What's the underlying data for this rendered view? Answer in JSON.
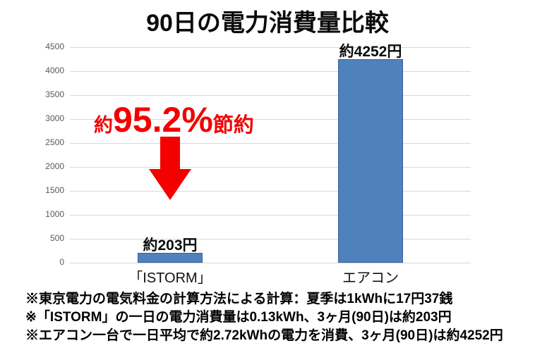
{
  "title": "90日の電力消費量比較",
  "chart_data": {
    "type": "bar",
    "title": "90日の電力消費量比較",
    "categories": [
      "「ISTORM」",
      "エアコン"
    ],
    "values": [
      203,
      4252
    ],
    "value_labels": [
      "約203円",
      "約4252円"
    ],
    "xlabel": "",
    "ylabel": "",
    "ylim": [
      0,
      4500
    ],
    "yticks": [
      0,
      500,
      1000,
      1500,
      2000,
      2500,
      3000,
      3500,
      4000,
      4500
    ],
    "grid": true,
    "legend": "none",
    "bar_fill_color": "#4f81bd",
    "bar_border_color": "#3a6398",
    "gridline_color": "#d9d9d9",
    "tick_label_color": "#595959"
  },
  "annotation": {
    "prefix": "約",
    "big": "95.2%",
    "suffix": "節約",
    "color": "#f30000",
    "arrow_icon": "down-arrow"
  },
  "footnotes": [
    "※東京電力の電気料金の計算方法による計算：夏季は1kWhに17円37銭",
    "※「ISTORM」の一日の電力消費量は0.13kWh、3ヶ月(90日)は約203円",
    "※エアコン一台で一日平均で約2.72kWhの電力を消費、3ヶ月(90日)は約4252円"
  ]
}
